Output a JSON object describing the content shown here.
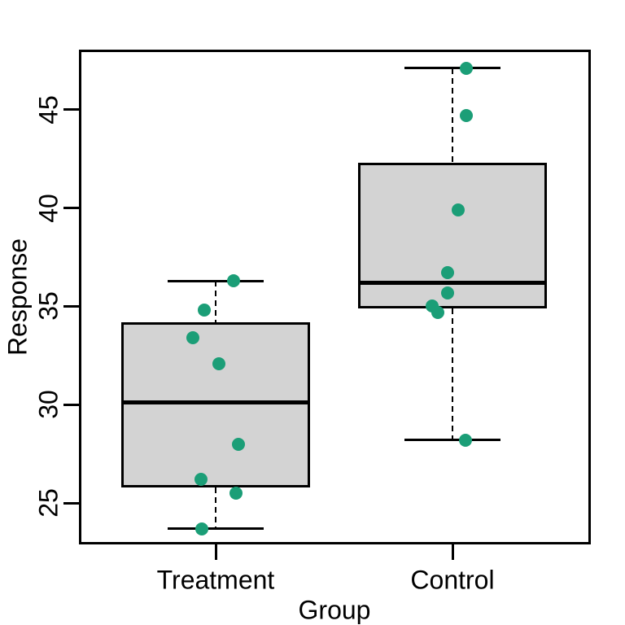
{
  "chart_data": {
    "type": "boxplot",
    "title": "",
    "xlabel": "Group",
    "ylabel": "Response",
    "categories": [
      "Treatment",
      "Control"
    ],
    "y_ticks": [
      25,
      30,
      35,
      40,
      45
    ],
    "ylim": [
      22.9,
      48.05
    ],
    "grid": false,
    "legend": "none",
    "colors": {
      "point": "#1B9E77",
      "box_fill": "#D3D3D3",
      "line": "#000000",
      "background": "#FFFFFF"
    },
    "groups": [
      {
        "label": "Treatment",
        "box": {
          "lower_whisker": 23.7,
          "q1": 25.8,
          "median": 30.1,
          "q3": 34.2,
          "upper_whisker": 36.3
        },
        "points": [
          {
            "value": 36.3,
            "x_offset": 22
          },
          {
            "value": 34.8,
            "x_offset": -14
          },
          {
            "value": 33.4,
            "x_offset": -28
          },
          {
            "value": 32.1,
            "x_offset": 4
          },
          {
            "value": 28.0,
            "x_offset": 28
          },
          {
            "value": 26.2,
            "x_offset": -18
          },
          {
            "value": 25.5,
            "x_offset": 25
          },
          {
            "value": 23.7,
            "x_offset": -17
          }
        ]
      },
      {
        "label": "Control",
        "box": {
          "lower_whisker": 28.2,
          "q1": 34.9,
          "median": 36.2,
          "q3": 42.3,
          "upper_whisker": 47.1
        },
        "points": [
          {
            "value": 47.1,
            "x_offset": 17
          },
          {
            "value": 44.7,
            "x_offset": 17
          },
          {
            "value": 39.9,
            "x_offset": 7
          },
          {
            "value": 36.7,
            "x_offset": -6
          },
          {
            "value": 35.7,
            "x_offset": -6
          },
          {
            "value": 35.0,
            "x_offset": -25
          },
          {
            "value": 34.7,
            "x_offset": -18
          },
          {
            "value": 28.2,
            "x_offset": 16
          }
        ]
      }
    ]
  }
}
